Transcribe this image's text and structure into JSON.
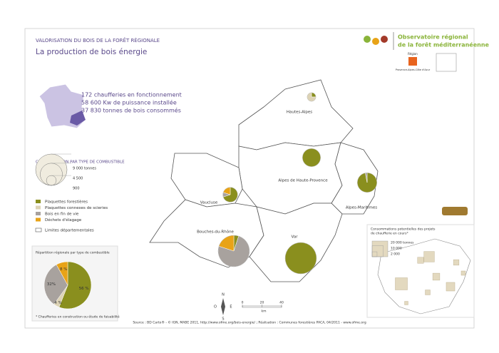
{
  "header": {
    "kicker": "VALORISATION DU BOIS DE LA FORÊT RÉGIONALE",
    "title": "La production de bois énergie"
  },
  "logo": {
    "line1": "Observatoire régional",
    "line2": "de la forêt méditerranéenne",
    "region_label": "Région",
    "region_name": "Provence-Alpes-Côte d'Azur"
  },
  "summary": [
    "172 chaufferies en fonctionnement",
    "58 600 Kw de puissance installée",
    "37 830 tonnes de bois consommés"
  ],
  "combustible_legend": {
    "title": "CONSOMMATION PAR TYPE DE COMBUSTIBLE",
    "size_legend": [
      {
        "value": 9000,
        "label": "9 000 tonnes"
      },
      {
        "value": 4500,
        "label": "4 500"
      },
      {
        "value": 900,
        "label": "900"
      }
    ],
    "types": [
      {
        "name": "Plaquettes forestières",
        "color": "#8a8f1e"
      },
      {
        "name": "Plaquettes connexes de scieries",
        "color": "#ddd3b5"
      },
      {
        "name": "Bois en fin de vie",
        "color": "#a8a29e"
      },
      {
        "name": "Déchets d'élagage",
        "color": "#e8a317"
      }
    ],
    "boundary_label": "Limites départementales"
  },
  "departments": [
    {
      "name": "Hautes-Alpes",
      "tonnes": 700,
      "shares": [
        25,
        75,
        0,
        0
      ]
    },
    {
      "name": "Alpes de Haute-Provence",
      "tonnes": 3000,
      "shares": [
        100,
        0,
        0,
        0
      ]
    },
    {
      "name": "Alpes-Maritimes",
      "tonnes": 3500,
      "shares": [
        97,
        0,
        3,
        0
      ]
    },
    {
      "name": "Vaucluse",
      "tonnes": 2000,
      "shares": [
        70,
        0,
        10,
        20
      ]
    },
    {
      "name": "Bouches-du-Rhône",
      "tonnes": 9000,
      "shares": [
        5,
        0,
        75,
        20
      ]
    },
    {
      "name": "Var",
      "tonnes": 9000,
      "shares": [
        100,
        0,
        0,
        0
      ]
    }
  ],
  "regional_pie": {
    "title": "Répartition régionale par type de combustible",
    "values": [
      56,
      4,
      32,
      8
    ],
    "value_labels": [
      "56 %",
      "4 %",
      "32%",
      "8 %"
    ],
    "footnote": "* Chaufferies en construction ou étude de faisabilité"
  },
  "projects": {
    "title": [
      "Consommations potentielles des projets",
      "de chaufferie en cours*"
    ],
    "size_legend": [
      {
        "value": 20000,
        "label": "20 000 tonnes"
      },
      {
        "value": 10000,
        "label": "10 000"
      },
      {
        "value": 2000,
        "label": "2 000"
      }
    ],
    "tonnes": [
      12000,
      9000,
      4000,
      3000,
      2000,
      6000,
      1500,
      1000,
      2500
    ]
  },
  "scale": {
    "ticks": [
      0,
      20,
      40
    ],
    "unit": "km"
  },
  "compass": [
    "N",
    "O",
    "E",
    "S"
  ],
  "source": "Source : BD Carto® - © IGN, MABE 2011, http://www.ofme.org/bois-energie/ ; Réalisation : Communes forestières PACA, 04/2011 - www.ofme.org"
}
